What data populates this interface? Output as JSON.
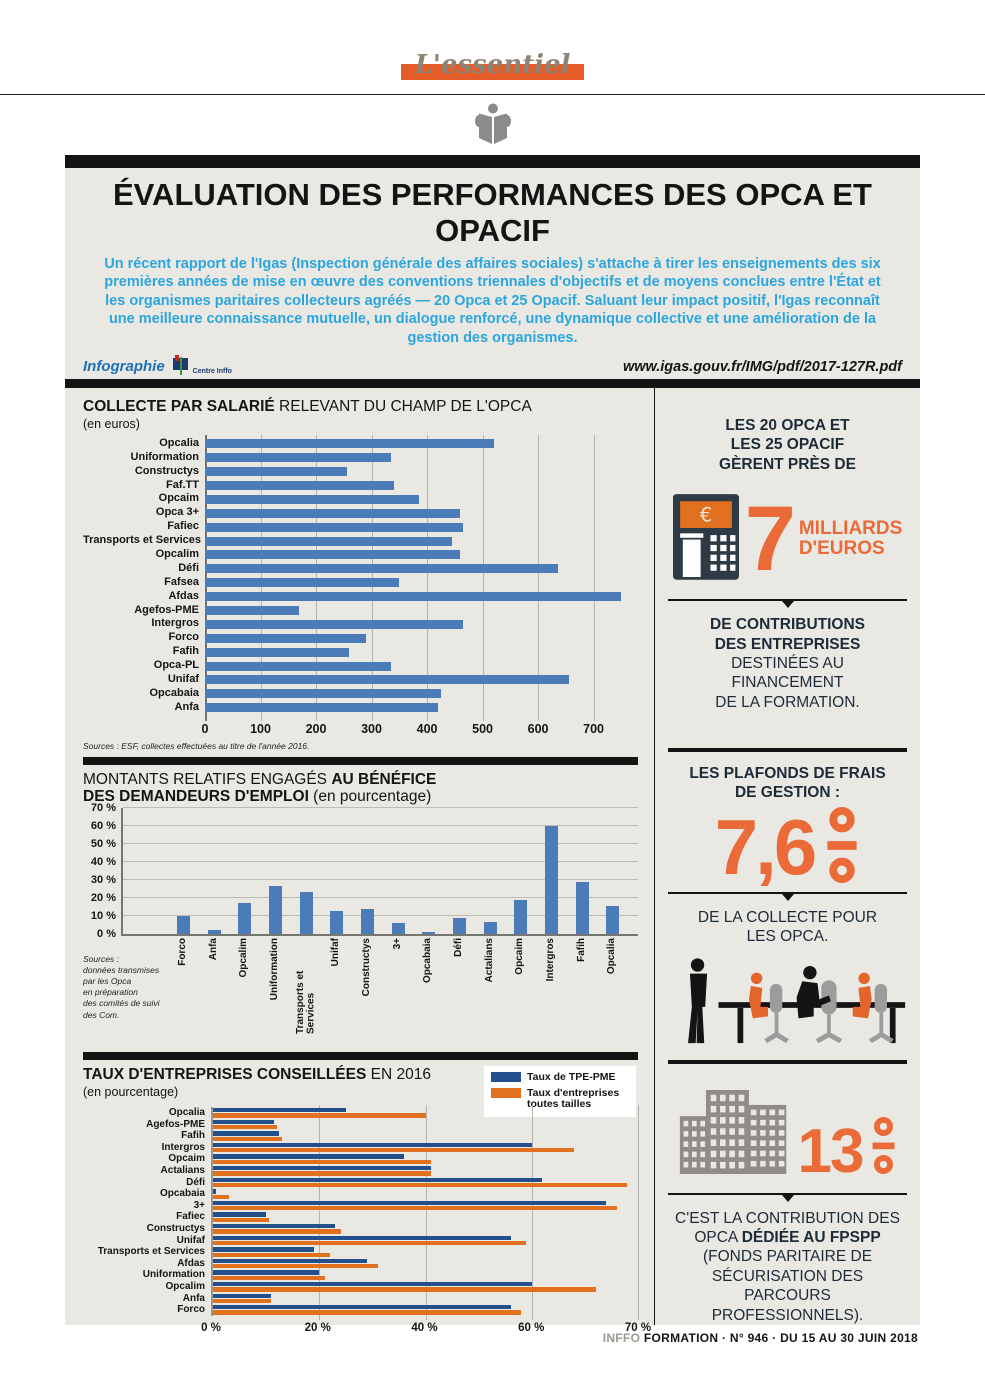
{
  "masthead": {
    "script_text": "L'essentiel"
  },
  "header": {
    "title": "ÉVALUATION DES PERFORMANCES DES OPCA ET OPACIF",
    "intro": "Un récent rapport de l'Igas (Inspection générale des affaires sociales) s'attache à tirer les enseignements des six premières années de mise en œuvre des conventions triennales d'objectifs et de moyens conclues entre l'État et les organismes paritaires collecteurs agréés — 20 Opca et 25 Opacif. Saluant leur impact positif, l'Igas reconnaît une meilleure connaissance mutuelle, un dialogue renforcé, une dynamique collective et une amélioration de la gestion des organismes.",
    "infographie_label": "Infographie",
    "logo_text": "Centre Inffo",
    "source_url": "www.igas.gouv.fr/IMG/pdf/2017-127R.pdf"
  },
  "sections": {
    "collecte": {
      "title_bold": "COLLECTE PAR SALARIÉ",
      "title_rest": " RELEVANT DU CHAMP DE L'OPCA",
      "unit": "(en euros)",
      "source": "Sources : ESF, collectes effectuées au titre de l'année 2016."
    },
    "montants": {
      "line1_regular": "MONTANTS RELATIFS ENGAGÉS ",
      "line1_bold": "AU BÉNÉFICE",
      "line2_bold": "DES DEMANDEURS D'EMPLOI",
      "line2_rest": " (en pourcentage)",
      "source_lines": [
        "Sources :",
        "données transmises",
        "par les Opca",
        "en préparation",
        "des comités de suivi",
        "des Com."
      ]
    },
    "taux": {
      "title_bold": "TAUX D'ENTREPRISES CONSEILLÉES",
      "title_rest": " EN 2016",
      "unit": "(en pourcentage)"
    }
  },
  "chart_data": [
    {
      "type": "bar",
      "orientation": "horizontal",
      "title": "COLLECTE PAR SALARIÉ RELEVANT DU CHAMP DE L'OPCA",
      "ylabel": "",
      "xlabel": "en euros",
      "categories": [
        "Opcalia",
        "Uniformation",
        "Constructys",
        "Faf.TT",
        "Opcaim",
        "Opca 3+",
        "Fafiec",
        "Transports et Services",
        "Opcalim",
        "Défi",
        "Fafsea",
        "Afdas",
        "Agefos-PME",
        "Intergros",
        "Forco",
        "Fafih",
        "Opca-PL",
        "Unifaf",
        "Opcabaia",
        "Anfa"
      ],
      "values": [
        520,
        335,
        255,
        340,
        385,
        460,
        465,
        445,
        460,
        635,
        350,
        750,
        170,
        465,
        290,
        260,
        335,
        655,
        425,
        420
      ],
      "xticks": [
        0,
        100,
        200,
        300,
        400,
        500,
        600,
        700
      ],
      "xlim": [
        0,
        780
      ],
      "bar_color": "#4c7cb8",
      "grid": true
    },
    {
      "type": "bar",
      "orientation": "vertical",
      "title": "MONTANTS RELATIFS ENGAGÉS AU BÉNÉFICE DES DEMANDEURS D'EMPLOI",
      "ylabel": "en pourcentage",
      "categories": [
        "Forco",
        "Anfa",
        "Opcalim",
        "Uniformation",
        "Transports et Services",
        "Unifaf",
        "Constructys",
        "3+",
        "Opcabaia",
        "Défi",
        "Actalians",
        "Opcaim",
        "Intergros",
        "Fafih",
        "Opcalia"
      ],
      "values": [
        10,
        2.5,
        17.5,
        27,
        23.5,
        13,
        14,
        6.5,
        1,
        9,
        7,
        19,
        60,
        29,
        15.5
      ],
      "yticks": [
        0,
        10,
        20,
        30,
        40,
        50,
        60,
        70
      ],
      "ylim": [
        0,
        70
      ],
      "tick_suffix": " %",
      "bar_color": "#4c7cb8",
      "grid": true
    },
    {
      "type": "bar",
      "orientation": "horizontal-grouped",
      "title": "TAUX D'ENTREPRISES CONSEILLÉES EN 2016",
      "xlabel": "en pourcentage",
      "categories": [
        "Opcalia",
        "Agefos-PME",
        "Fafih",
        "Intergros",
        "Opcaim",
        "Actalians",
        "Défi",
        "Opcabaia",
        "3+",
        "Fafiec",
        "Constructys",
        "Unifaf",
        "Transports et Services",
        "Afdas",
        "Uniformation",
        "Opcalim",
        "Anfa",
        "Forco"
      ],
      "series": [
        {
          "name": "Taux de TPE-PME",
          "color": "#234f8d",
          "values": [
            25,
            11.5,
            12.5,
            60,
            36,
            41,
            61,
            0.5,
            67,
            10,
            23,
            56,
            19,
            29,
            20,
            60,
            11,
            56
          ]
        },
        {
          "name": "Taux d'entreprises toutes tailles",
          "color": "#e2711f",
          "values": [
            40,
            12,
            13,
            64,
            41,
            41,
            69,
            3,
            68,
            10.5,
            24,
            59,
            22,
            31,
            21,
            66,
            11,
            58
          ]
        }
      ],
      "xticks": [
        0,
        20,
        40,
        60,
        70
      ],
      "xtick_labels": [
        "0 %",
        "20 %",
        "40 %",
        "60 %",
        "70 %"
      ],
      "axis_note": "ticks evenly spaced; 60-70 segment stretched (piecewise scale)",
      "legend_position": "top-right",
      "grid": true
    }
  ],
  "right_column": {
    "block1_lines": [
      "LES 20 OPCA ET",
      "LES 25 OPACIF",
      "GÈRENT PRÈS DE"
    ],
    "stat1": {
      "number": "7",
      "label_lines": [
        "MILLIARDS",
        "D'EUROS"
      ]
    },
    "block2_bold_lines": [
      "DE CONTRIBUTIONS",
      "DES ENTREPRISES"
    ],
    "block2_rest_lines": [
      "DESTINÉES AU",
      "FINANCEMENT",
      "DE LA FORMATION."
    ],
    "block3_heading_lines": [
      "LES PLAFONDS DE FRAIS",
      "DE GESTION :"
    ],
    "stat2": {
      "number": "7,6",
      "unit": "%"
    },
    "block4_lines": [
      "DE LA COLLECTE POUR",
      "LES OPCA."
    ],
    "stat3": {
      "number": "13",
      "unit": "%"
    },
    "block5": {
      "pre": "C'EST LA CONTRIBUTION DES OPCA ",
      "bold": "DÉDIÉE AU FPSPP",
      "post": " (FONDS PARITAIRE DE SÉCURISATION DES PARCOURS PROFESSIONNELS)."
    }
  },
  "footer": {
    "brand_grey": "INFFO",
    "brand_black": "FORMATION",
    "rest": " · N° 946 · DU 15 AU 30 JUIN 2018"
  },
  "colors": {
    "accent_orange": "#ea6a38",
    "banner_orange": "#e55c28",
    "bar_blue": "#4c7cb8",
    "bar_navy": "#234f8d",
    "bar_orange": "#e2711f",
    "intro_blue": "#2ba6de",
    "infographie_blue": "#1d71b8",
    "panel_grey": "#eae8e3",
    "text_dark": "#141414"
  }
}
